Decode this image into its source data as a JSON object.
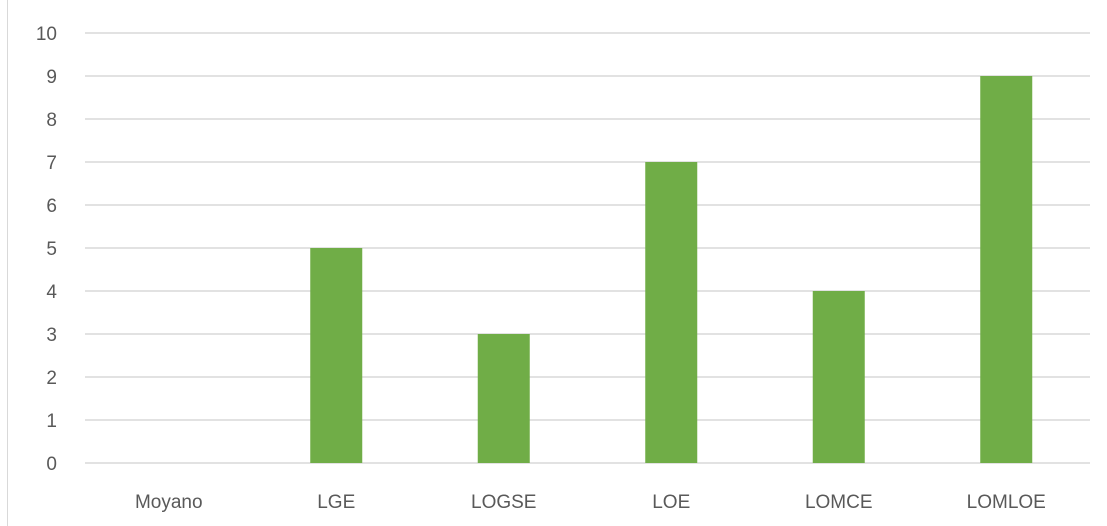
{
  "chart_data": {
    "type": "bar",
    "title": "",
    "xlabel": "",
    "ylabel": "",
    "categories": [
      "Moyano",
      "LGE",
      "LOGSE",
      "LOE",
      "LOMCE",
      "LOMLOE"
    ],
    "values": [
      0,
      5,
      3,
      7,
      4,
      9
    ],
    "ylim": [
      0,
      10
    ],
    "yticks": [
      0,
      1,
      2,
      3,
      4,
      5,
      6,
      7,
      8,
      9,
      10
    ],
    "grid": true,
    "legend": "none",
    "colors": {
      "bar": "#70ad47",
      "grid": "#d9d9d9",
      "text": "#595959"
    }
  }
}
